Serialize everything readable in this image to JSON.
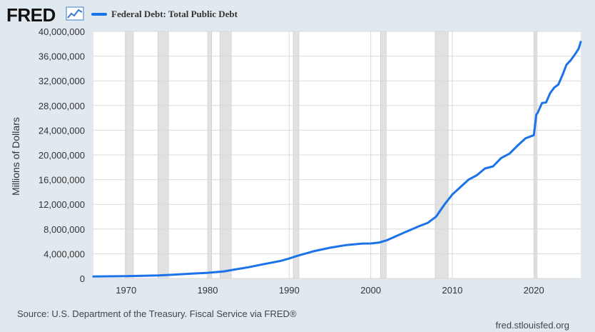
{
  "header": {
    "logo": "FRED",
    "logo_icon": "trend-line-icon",
    "legend_label": "Federal Debt: Total Public Debt"
  },
  "footer": {
    "source": "Source: U.S. Department of the Treasury. Fiscal Service via FRED®",
    "site": "fred.stlouisfed.org"
  },
  "colors": {
    "series": "#1a73e8",
    "plot_bg": "#ffffff",
    "page_bg": "#e1e9f0",
    "recession": "#e1e1e1",
    "grid": "#d9d9d9"
  },
  "chart_data": {
    "type": "line",
    "title": "",
    "xlabel": "",
    "ylabel": "Millions of Dollars",
    "xlim": [
      1966,
      2025.75
    ],
    "ylim": [
      0,
      40000000
    ],
    "x_ticks": [
      1970,
      1980,
      1990,
      2000,
      2010,
      2020
    ],
    "x_tick_labels": [
      "1970",
      "1980",
      "1990",
      "2000",
      "2010",
      "2020"
    ],
    "y_ticks": [
      0,
      4000000,
      8000000,
      12000000,
      16000000,
      20000000,
      24000000,
      28000000,
      32000000,
      36000000,
      40000000
    ],
    "y_tick_labels": [
      "0",
      "4,000,000",
      "8,000,000",
      "12,000,000",
      "16,000,000",
      "20,000,000",
      "24,000,000",
      "28,000,000",
      "32,000,000",
      "36,000,000",
      "40,000,000"
    ],
    "grid": true,
    "legend": "top-left",
    "recessions": [
      [
        1969.9,
        1970.9
      ],
      [
        1973.9,
        1975.2
      ],
      [
        1980.0,
        1980.5
      ],
      [
        1981.5,
        1982.9
      ],
      [
        1990.5,
        1991.2
      ],
      [
        2001.2,
        2001.9
      ],
      [
        2007.9,
        2009.5
      ],
      [
        2020.1,
        2020.4
      ]
    ],
    "series": [
      {
        "name": "Federal Debt: Total Public Debt",
        "x": [
          1966,
          1968,
          1970,
          1972,
          1974,
          1976,
          1978,
          1980,
          1982,
          1983,
          1985,
          1987,
          1989,
          1990,
          1991,
          1993,
          1995,
          1997,
          1999,
          2000,
          2001,
          2002,
          2004,
          2006,
          2007,
          2008,
          2009,
          2010,
          2011,
          2012,
          2013,
          2014,
          2015,
          2016,
          2017,
          2018,
          2019,
          2020.0,
          2020.3,
          2020.5,
          2021,
          2021.5,
          2022,
          2022.5,
          2023,
          2023.5,
          2024,
          2024.5,
          2025,
          2025.5,
          2025.75
        ],
        "values": [
          320000,
          350000,
          370000,
          430000,
          480000,
          620000,
          780000,
          910000,
          1140000,
          1380000,
          1820000,
          2350000,
          2860000,
          3230000,
          3660000,
          4410000,
          4970000,
          5410000,
          5650000,
          5660000,
          5800000,
          6200000,
          7380000,
          8500000,
          9000000,
          9990000,
          11900000,
          13600000,
          14800000,
          16000000,
          16700000,
          17800000,
          18150000,
          19500000,
          20200000,
          21500000,
          22700000,
          23200000,
          26500000,
          26900000,
          28400000,
          28500000,
          30000000,
          30900000,
          31400000,
          32900000,
          34600000,
          35300000,
          36200000,
          37200000,
          38300000
        ]
      }
    ]
  }
}
